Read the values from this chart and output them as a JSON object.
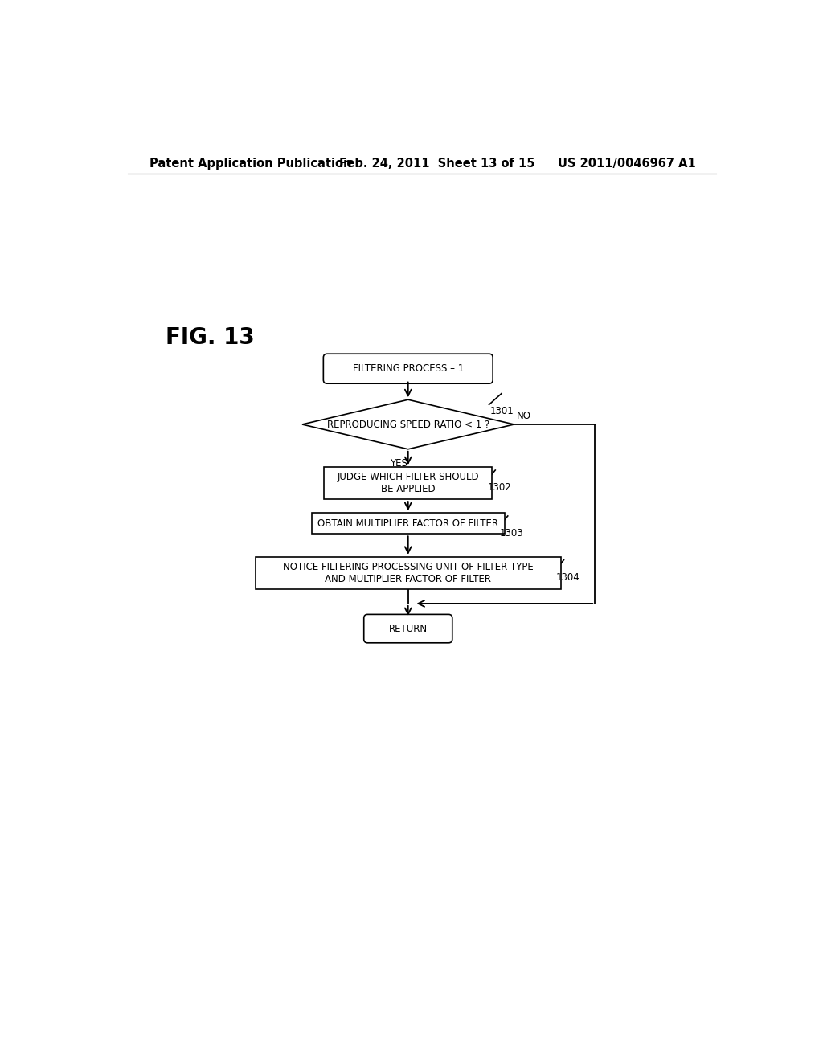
{
  "bg_color": "#ffffff",
  "header_left": "Patent Application Publication",
  "header_mid": "Feb. 24, 2011  Sheet 13 of 15",
  "header_right": "US 2011/0046967 A1",
  "fig_label": "FIG. 13",
  "start_label": "FILTERING PROCESS – 1",
  "diamond_label": "REPRODUCING SPEED RATIO < 1 ?",
  "box1302_label": "JUDGE WHICH FILTER SHOULD\nBE APPLIED",
  "box1303_label": "OBTAIN MULTIPLIER FACTOR OF FILTER",
  "box1304_label": "NOTICE FILTERING PROCESSING UNIT OF FILTER TYPE\nAND MULTIPLIER FACTOR OF FILTER",
  "return_label": "RETURN",
  "yes_text": "YES",
  "no_text": "NO",
  "ref1301": "1301",
  "ref1302": "1302",
  "ref1303": "1303",
  "ref1304": "1304",
  "font_size_header": 10.5,
  "font_size_fig": 20,
  "font_size_node": 8.5,
  "font_size_label": 8.5
}
